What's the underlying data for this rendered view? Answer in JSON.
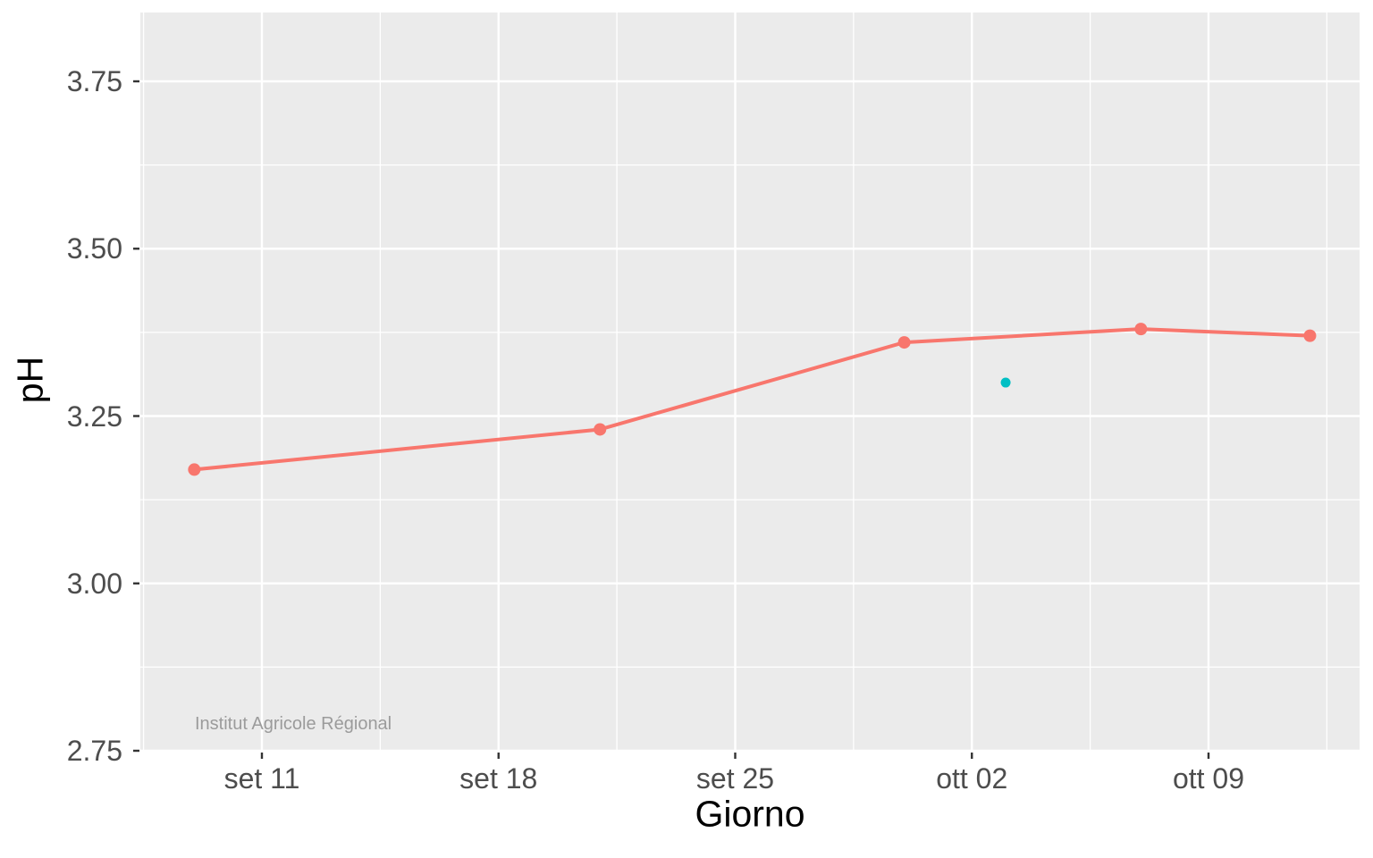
{
  "chart_data": {
    "type": "line",
    "title": "",
    "xlabel": "Giorno",
    "ylabel": "pH",
    "watermark": "Institut Agricole Régional",
    "x_axis": {
      "tick_labels": [
        "set 11",
        "set 18",
        "set 25",
        "ott 02",
        "ott 09"
      ],
      "tick_days": [
        11,
        18,
        25,
        32,
        39
      ],
      "minor_days": [
        7.5,
        14.5,
        21.5,
        28.5,
        35.5,
        42.5
      ],
      "domain_days": [
        7.4,
        43.5
      ]
    },
    "y_axis": {
      "tick_labels": [
        "3.75",
        "3.50",
        "3.25",
        "3.00",
        "2.75"
      ],
      "tick_values": [
        3.75,
        3.5,
        3.25,
        3.0,
        2.75
      ],
      "minor_values": [
        3.625,
        3.375,
        3.125,
        2.875
      ],
      "domain": [
        2.746,
        3.853
      ]
    },
    "series": [
      {
        "name": "ph-line",
        "color": "#F8766D",
        "style": "line-with-points",
        "line_width": 4,
        "point_radius": 7,
        "points": [
          {
            "date": "set 09",
            "day": 9,
            "ph": 3.17
          },
          {
            "date": "set 21",
            "day": 21,
            "ph": 3.23
          },
          {
            "date": "set 30",
            "day": 30,
            "ph": 3.36
          },
          {
            "date": "ott 07",
            "day": 37,
            "ph": 3.38
          },
          {
            "date": "ott 12",
            "day": 42,
            "ph": 3.37
          }
        ]
      },
      {
        "name": "isolated-point",
        "color": "#00BFC4",
        "style": "points-only",
        "line_width": 0,
        "point_radius": 5.5,
        "points": [
          {
            "date": "ott 03",
            "day": 33,
            "ph": 3.3
          }
        ]
      }
    ],
    "layout": {
      "grid": "on",
      "legend": "none",
      "panel_background": "#EBEBEB",
      "grid_color": "#FFFFFF",
      "axis_text_color": "#4D4D4D",
      "axis_title_color": "#000000",
      "tick_mark_color": "#333333",
      "watermark_color": "#9B9B9B",
      "figure_background": "#FFFFFF"
    }
  }
}
